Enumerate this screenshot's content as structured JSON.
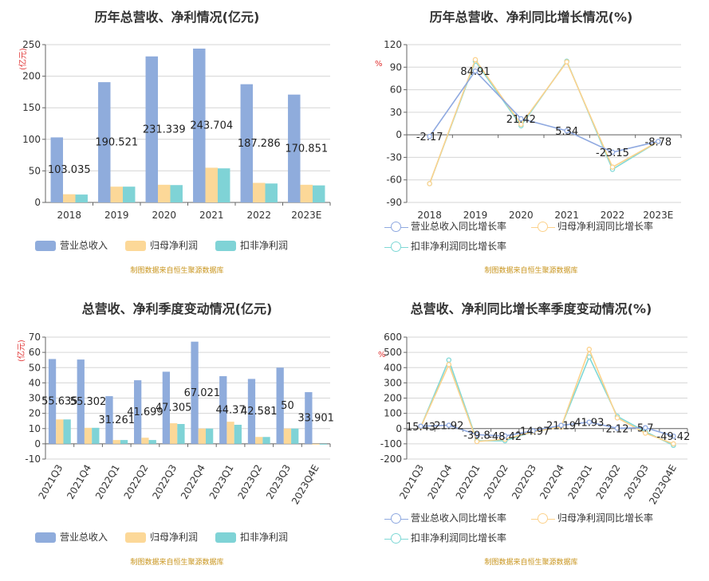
{
  "source_text": "制图数据来自恒生聚源数据库",
  "colors": {
    "revenue": "#8facdc",
    "profit": "#fcd898",
    "deducted": "#7fd3d6",
    "line_revenue": "#8fa9e0",
    "line_profit": "#fcd28c",
    "line_deducted": "#7fd8d6"
  },
  "chart_data": [
    {
      "type": "bar",
      "title": "历年总营收、净利情况(亿元)",
      "unit_label": "(亿元)",
      "categories": [
        "2018",
        "2019",
        "2020",
        "2021",
        "2022",
        "2023E"
      ],
      "ylim": [
        0,
        250
      ],
      "yticks": [
        0,
        50,
        100,
        150,
        200,
        250
      ],
      "grid": true,
      "legend_position": "bottom",
      "series": [
        {
          "name": "营业总收入",
          "values": [
            103.035,
            190.521,
            231.339,
            243.704,
            187.286,
            170.851
          ]
        },
        {
          "name": "归母净利润",
          "values": [
            13,
            25,
            28,
            55,
            31,
            28
          ]
        },
        {
          "name": "扣非净利润",
          "values": [
            12.5,
            25,
            27.5,
            54,
            30,
            27
          ]
        }
      ],
      "data_labels": [
        "103.035",
        "190.521",
        "231.339",
        "243.704",
        "187.286",
        "170.851"
      ]
    },
    {
      "type": "line",
      "title": "历年总营收、净利同比增长情况(%)",
      "unit_label": "%",
      "categories": [
        "2018",
        "2019",
        "2020",
        "2021",
        "2022",
        "2023E"
      ],
      "ylim": [
        -90,
        120
      ],
      "yticks": [
        -90,
        -60,
        -30,
        0,
        30,
        60,
        90,
        120
      ],
      "grid": true,
      "legend_position": "bottom",
      "series": [
        {
          "name": "营业总收入同比增长率",
          "values": [
            -2.17,
            84.91,
            21.42,
            5.34,
            -23.15,
            -8.78
          ]
        },
        {
          "name": "归母净利润同比增长率",
          "values": [
            -65,
            100,
            14,
            97,
            -43,
            -9
          ]
        },
        {
          "name": "扣非净利润同比增长率",
          "values": [
            -65,
            98,
            12,
            98,
            -46,
            -9
          ]
        }
      ],
      "data_labels": [
        "-2.17",
        "84.91",
        "21.42",
        "5.34",
        "-23.15",
        "-8.78"
      ]
    },
    {
      "type": "bar",
      "title": "总营收、净利季度变动情况(亿元)",
      "unit_label": "(亿元)",
      "categories": [
        "2021Q3",
        "2021Q4",
        "2022Q1",
        "2022Q2",
        "2022Q3",
        "2022Q4",
        "2023Q1",
        "2023Q2",
        "2023Q3",
        "2023Q4E"
      ],
      "ylim": [
        -10,
        70
      ],
      "yticks": [
        -10,
        0,
        10,
        20,
        30,
        40,
        50,
        60,
        70
      ],
      "grid": true,
      "legend_position": "bottom",
      "series": [
        {
          "name": "营业总收入",
          "values": [
            55.635,
            55.302,
            31.261,
            41.699,
            47.305,
            67.021,
            44.37,
            42.581,
            50,
            33.901
          ]
        },
        {
          "name": "归母净利润",
          "values": [
            16,
            10.5,
            2.5,
            4,
            13.5,
            10,
            14.5,
            4.5,
            10,
            -0.5
          ]
        },
        {
          "name": "扣非净利润",
          "values": [
            16,
            10.5,
            2.5,
            2.5,
            13,
            10,
            12.5,
            4.5,
            10,
            -0.5
          ]
        }
      ],
      "data_labels": [
        "55.635",
        "55.302",
        "31.261",
        "41.699",
        "47.305",
        "67.021",
        "44.37",
        "42.581",
        "50",
        "33.901"
      ]
    },
    {
      "type": "line",
      "title": "总营收、净利同比增长率季度变动情况(%)",
      "unit_label": "%",
      "categories": [
        "2021Q3",
        "2021Q4",
        "2022Q1",
        "2022Q2",
        "2022Q3",
        "2022Q4",
        "2023Q1",
        "2023Q2",
        "2023Q3",
        "2023Q4E"
      ],
      "ylim": [
        -200,
        600
      ],
      "yticks": [
        -200,
        -100,
        0,
        100,
        200,
        300,
        400,
        500,
        600
      ],
      "grid": true,
      "legend_position": "bottom",
      "series": [
        {
          "name": "营业总收入同比增长率",
          "values": [
            15.43,
            21.92,
            -39.8,
            -48.42,
            -14.97,
            21.19,
            41.93,
            2.12,
            5.7,
            -49.42
          ]
        },
        {
          "name": "归母净利润同比增长率",
          "values": [
            10,
            420,
            -85,
            -70,
            -20,
            10,
            520,
            70,
            -30,
            -100
          ]
        },
        {
          "name": "扣非净利润同比增长率",
          "values": [
            10,
            450,
            -80,
            -80,
            -20,
            10,
            470,
            80,
            -20,
            -110
          ]
        }
      ],
      "data_labels": [
        "15.43",
        "21.92",
        "-39.8",
        "-48.42",
        "-14.97",
        "21.19",
        "41.93",
        "2.12",
        "5.7",
        "-49.42"
      ]
    }
  ]
}
